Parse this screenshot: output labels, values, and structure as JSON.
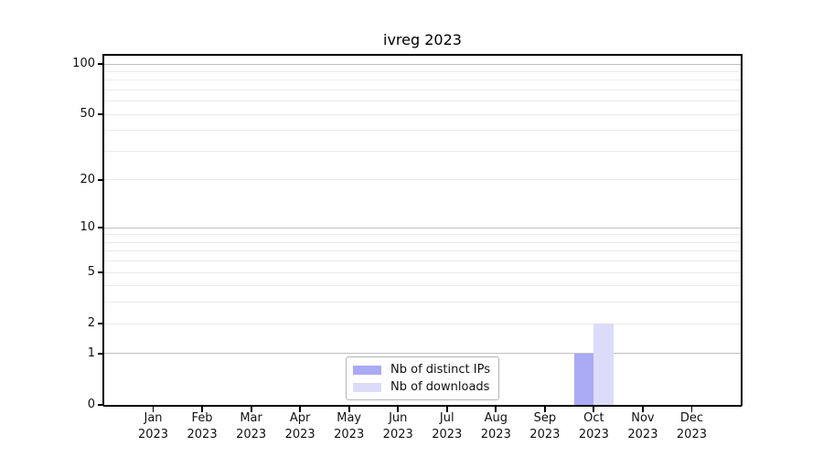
{
  "window": {
    "background": "#ffffff"
  },
  "chart_data": {
    "type": "bar",
    "title": "ivreg 2023",
    "categories": [
      "Jan",
      "Feb",
      "Mar",
      "Apr",
      "May",
      "Jun",
      "Jul",
      "Aug",
      "Sep",
      "Oct",
      "Nov",
      "Dec"
    ],
    "category_sublabel": "2023",
    "series": [
      {
        "name": "Nb of distinct IPs",
        "color": "#aaaaf5",
        "values": [
          0,
          0,
          0,
          0,
          0,
          0,
          0,
          0,
          0,
          1,
          0,
          0
        ]
      },
      {
        "name": "Nb of downloads",
        "color": "#dcdcfa",
        "values": [
          0,
          0,
          0,
          0,
          0,
          0,
          0,
          0,
          0,
          2,
          0,
          0
        ]
      }
    ],
    "y_scale": "log1p",
    "y_max": 100,
    "y_ticks": [
      0,
      1,
      2,
      5,
      10,
      20,
      50,
      100
    ],
    "y_major_gridlines": [
      1,
      10,
      100
    ],
    "y_minor_gridlines": [
      2,
      3,
      4,
      5,
      6,
      7,
      8,
      9,
      20,
      30,
      40,
      50,
      60,
      70,
      80,
      90
    ],
    "legend_position": "lower center",
    "grid": "horizontal",
    "colors": {
      "major_grid": "#bfbfbf",
      "minor_grid": "#eaeaea",
      "spine": "#000000",
      "text": "#111111",
      "legend_border": "#b3b3b3"
    }
  }
}
